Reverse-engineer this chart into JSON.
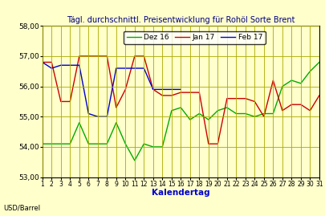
{
  "title": "Tägl. durchschnittl. Preisentwicklung für Rohöl Sorte Brent",
  "xlabel": "Kalendertag",
  "ylabel": "USD/Barrel",
  "ylim": [
    53.0,
    58.0
  ],
  "yticks": [
    53.0,
    54.0,
    55.0,
    56.0,
    57.0,
    58.0
  ],
  "xticks": [
    1,
    2,
    3,
    4,
    5,
    6,
    7,
    8,
    9,
    10,
    11,
    12,
    13,
    14,
    15,
    16,
    17,
    18,
    19,
    20,
    21,
    22,
    23,
    24,
    25,
    26,
    27,
    28,
    29,
    30,
    31
  ],
  "background_color": "#FFFFCC",
  "grid_color": "#AAAA00",
  "title_color": "#000080",
  "xlabel_color": "#0000CC",
  "ylabel_color": "#000000",
  "legend_labels": [
    "Dez 16",
    "Jan 17",
    "Feb 17"
  ],
  "legend_colors": [
    "#00AA00",
    "#CC0000",
    "#0000CC"
  ],
  "dez16_x": [
    1,
    2,
    3,
    4,
    5,
    6,
    7,
    8,
    9,
    10,
    11,
    12,
    13,
    14,
    15,
    16,
    17,
    18,
    19,
    20,
    21,
    22,
    23,
    24,
    25,
    26,
    27,
    28,
    29,
    30,
    31
  ],
  "dez16_y": [
    54.1,
    54.1,
    54.1,
    54.1,
    54.8,
    54.1,
    54.1,
    54.1,
    54.8,
    54.1,
    53.55,
    54.1,
    54.0,
    54.0,
    55.2,
    55.3,
    54.9,
    55.1,
    54.9,
    55.2,
    55.3,
    55.1,
    55.1,
    55.0,
    55.1,
    55.1,
    56.0,
    56.2,
    56.1,
    56.5,
    56.8
  ],
  "jan17_x": [
    1,
    2,
    3,
    4,
    5,
    6,
    7,
    8,
    9,
    10,
    11,
    12,
    13,
    14,
    15,
    16,
    17,
    18,
    19,
    20,
    21,
    22,
    23,
    24,
    25,
    26,
    27,
    28,
    29,
    30,
    31
  ],
  "jan17_y": [
    56.8,
    56.8,
    55.5,
    55.5,
    57.0,
    57.0,
    57.0,
    57.0,
    55.3,
    55.9,
    57.0,
    57.0,
    55.9,
    55.7,
    55.7,
    55.8,
    55.8,
    55.8,
    54.1,
    54.1,
    55.6,
    55.6,
    55.6,
    55.5,
    55.0,
    56.2,
    55.2,
    55.4,
    55.4,
    55.2,
    55.7
  ],
  "feb17_x": [
    1,
    2,
    3,
    4,
    5,
    6,
    7,
    8,
    9,
    10,
    11,
    12,
    13,
    14,
    15,
    16
  ],
  "feb17_y": [
    56.8,
    56.6,
    56.7,
    56.7,
    56.7,
    55.1,
    55.0,
    55.0,
    56.6,
    56.6,
    56.6,
    56.6,
    55.9,
    55.9,
    55.9,
    55.9
  ]
}
